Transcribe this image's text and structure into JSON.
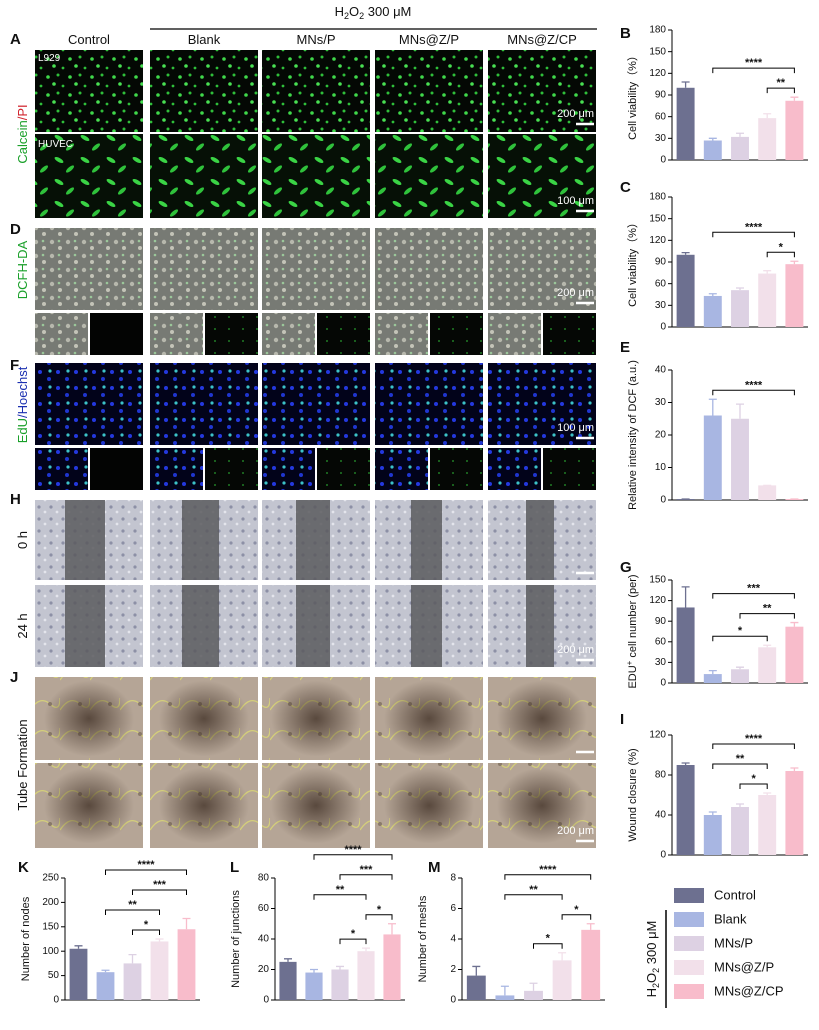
{
  "header": {
    "parts": [
      "H",
      "2",
      "O",
      "2",
      " 300 μM"
    ]
  },
  "columns": [
    "Control",
    "Blank",
    "MNs/P",
    "MNs@Z/P",
    "MNs@Z/CP"
  ],
  "image_panels": [
    {
      "letter": "A",
      "label_parts": [
        "Calcein",
        "/PI"
      ],
      "inset_labels": [
        "L929",
        "HUVEC"
      ],
      "scale_bars": [
        "200 μm",
        "100 μm"
      ]
    },
    {
      "letter": "D",
      "label_parts": [
        "DCFH-DA"
      ],
      "scale_bars": [
        "200 μm"
      ]
    },
    {
      "letter": "F",
      "label_parts": [
        "EdU",
        "/Hoechst"
      ],
      "scale_bars": [
        "100 μm"
      ]
    },
    {
      "letter": "H",
      "row_labels": [
        "0 h",
        "24 h"
      ],
      "scale_bars": [
        "200 μm"
      ]
    },
    {
      "letter": "J",
      "label_parts": [
        "Tube Formation"
      ],
      "scale_bars": [
        "200 μm"
      ]
    }
  ],
  "legend": {
    "group_label_parts": [
      "H",
      "2",
      "O",
      "2",
      " 300 μM"
    ],
    "entries": [
      {
        "name": "Control",
        "color": "#6d7090"
      },
      {
        "name": "Blank",
        "color": "#a8b6e2"
      },
      {
        "name": "MNs/P",
        "color": "#ddd1e3"
      },
      {
        "name": "MNs@Z/P",
        "color": "#f2e0ea"
      },
      {
        "name": "MNs@Z/CP",
        "color": "#f8bccb"
      }
    ]
  },
  "chart_data": [
    {
      "type": "bar",
      "letter": "B",
      "ylabel": "Cell viability（%）",
      "values": [
        100,
        27,
        32,
        58,
        82
      ],
      "errors": [
        8,
        3,
        5,
        6,
        5
      ],
      "ylim": [
        0,
        180
      ],
      "yticks": [
        0,
        30,
        60,
        90,
        120,
        150,
        180
      ],
      "annotations": [
        {
          "label": "**",
          "between": [
            3,
            4
          ]
        },
        {
          "label": "****",
          "between": [
            1,
            4
          ]
        }
      ]
    },
    {
      "type": "bar",
      "letter": "C",
      "ylabel": "Cell viability（%）",
      "values": [
        100,
        43,
        51,
        74,
        87
      ],
      "errors": [
        3,
        3,
        3,
        4,
        4
      ],
      "ylim": [
        0,
        180
      ],
      "yticks": [
        0,
        30,
        60,
        90,
        120,
        150,
        180
      ],
      "annotations": [
        {
          "label": "*",
          "between": [
            3,
            4
          ]
        },
        {
          "label": "****",
          "between": [
            1,
            4
          ]
        }
      ]
    },
    {
      "type": "bar",
      "letter": "E",
      "ylabel": "Relative intensity of DCF (a.u.)",
      "values": [
        0.3,
        26,
        25,
        4.5,
        0.3
      ],
      "errors": [
        0,
        5,
        4.5,
        0,
        0
      ],
      "ylim": [
        0,
        40
      ],
      "yticks": [
        0,
        10,
        20,
        30,
        40
      ],
      "annotations": [
        {
          "label": "****",
          "between": [
            1,
            4
          ]
        }
      ]
    },
    {
      "type": "bar",
      "letter": "G",
      "ylabel": [
        "EDU",
        "+",
        " cell number (per)"
      ],
      "values": [
        110,
        13,
        20,
        52,
        82
      ],
      "errors": [
        30,
        5,
        3,
        3,
        6
      ],
      "ylim": [
        0,
        150
      ],
      "yticks": [
        0,
        30,
        60,
        90,
        120,
        150
      ],
      "annotations": [
        {
          "label": "*",
          "between": [
            1,
            3
          ]
        },
        {
          "label": "**",
          "between": [
            2,
            4
          ]
        },
        {
          "label": "***",
          "between": [
            1,
            4
          ]
        }
      ]
    },
    {
      "type": "bar",
      "letter": "I",
      "ylabel": "Wound closure (%)",
      "values": [
        90,
        40,
        48,
        60,
        84
      ],
      "errors": [
        2,
        3,
        3,
        2,
        3
      ],
      "ylim": [
        0,
        120
      ],
      "yticks": [
        0,
        40,
        80,
        120
      ],
      "annotations": [
        {
          "label": "*",
          "between": [
            2,
            3
          ]
        },
        {
          "label": "**",
          "between": [
            1,
            3
          ]
        },
        {
          "label": "****",
          "between": [
            1,
            4
          ]
        }
      ]
    },
    {
      "type": "bar",
      "letter": "K",
      "ylabel": "Number of nodes",
      "values": [
        105,
        57,
        75,
        120,
        145
      ],
      "errors": [
        6,
        4,
        18,
        5,
        22
      ],
      "ylim": [
        0,
        250
      ],
      "yticks": [
        0,
        50,
        100,
        150,
        200,
        250
      ],
      "annotations": [
        {
          "label": "*",
          "between": [
            2,
            3
          ]
        },
        {
          "label": "**",
          "between": [
            1,
            3
          ]
        },
        {
          "label": "***",
          "between": [
            2,
            4
          ]
        },
        {
          "label": "****",
          "between": [
            1,
            4
          ]
        }
      ]
    },
    {
      "type": "bar",
      "letter": "L",
      "ylabel": "Number of junctions",
      "values": [
        25,
        18,
        20,
        32,
        43
      ],
      "errors": [
        2,
        2,
        2,
        2,
        7
      ],
      "ylim": [
        0,
        80
      ],
      "yticks": [
        0,
        20,
        40,
        60,
        80
      ],
      "annotations": [
        {
          "label": "*",
          "between": [
            2,
            3
          ]
        },
        {
          "label": "*",
          "between": [
            3,
            4
          ]
        },
        {
          "label": "**",
          "between": [
            1,
            3
          ]
        },
        {
          "label": "***",
          "between": [
            2,
            4
          ]
        },
        {
          "label": "****",
          "between": [
            1,
            4
          ]
        }
      ]
    },
    {
      "type": "bar",
      "letter": "M",
      "ylabel": "Number of meshs",
      "values": [
        1.6,
        0.3,
        0.6,
        2.6,
        4.6
      ],
      "errors": [
        0.6,
        0.6,
        0.5,
        0.5,
        0.4
      ],
      "ylim": [
        0,
        8
      ],
      "yticks": [
        0,
        2,
        4,
        6,
        8
      ],
      "annotations": [
        {
          "label": "*",
          "between": [
            2,
            3
          ]
        },
        {
          "label": "*",
          "between": [
            3,
            4
          ]
        },
        {
          "label": "**",
          "between": [
            1,
            3
          ]
        },
        {
          "label": "****",
          "between": [
            1,
            4
          ]
        }
      ]
    }
  ]
}
